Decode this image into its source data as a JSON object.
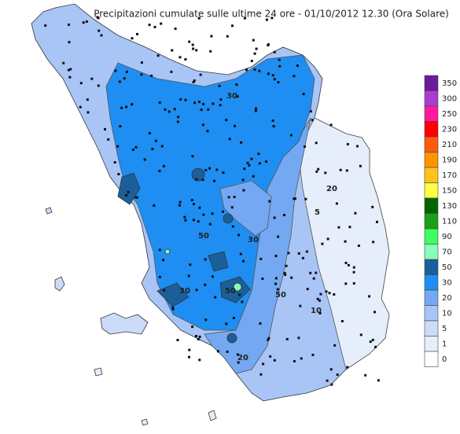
{
  "header": {
    "title": "Precipitazioni cumulate sulle ultime 24 ore - 01/10/2012 12.30 (Ora Solare)"
  },
  "legend": {
    "items": [
      {
        "label": "350",
        "color": "#6a1b9a"
      },
      {
        "label": "300",
        "color": "#a83ed0"
      },
      {
        "label": "250",
        "color": "#ff1a9c"
      },
      {
        "label": "230",
        "color": "#ff0000"
      },
      {
        "label": "210",
        "color": "#ff5a10"
      },
      {
        "label": "190",
        "color": "#ff9400"
      },
      {
        "label": "170",
        "color": "#ffc21a"
      },
      {
        "label": "150",
        "color": "#ffff40"
      },
      {
        "label": "130",
        "color": "#006400"
      },
      {
        "label": "110",
        "color": "#18a018"
      },
      {
        "label": "90",
        "color": "#3cff60"
      },
      {
        "label": "70",
        "color": "#86ffb8"
      },
      {
        "label": "50",
        "color": "#1a5f9a"
      },
      {
        "label": "30",
        "color": "#1e8ef2"
      },
      {
        "label": "20",
        "color": "#74a8f2"
      },
      {
        "label": "10",
        "color": "#a9c5f6"
      },
      {
        "label": "5",
        "color": "#cbdcf8"
      },
      {
        "label": "1",
        "color": "#e6eefb"
      },
      {
        "label": "0",
        "color": "#ffffff"
      }
    ]
  },
  "map": {
    "contour_labels": [
      "30",
      "50",
      "20",
      "30",
      "50",
      "5",
      "10",
      "30",
      "20",
      "50"
    ]
  }
}
